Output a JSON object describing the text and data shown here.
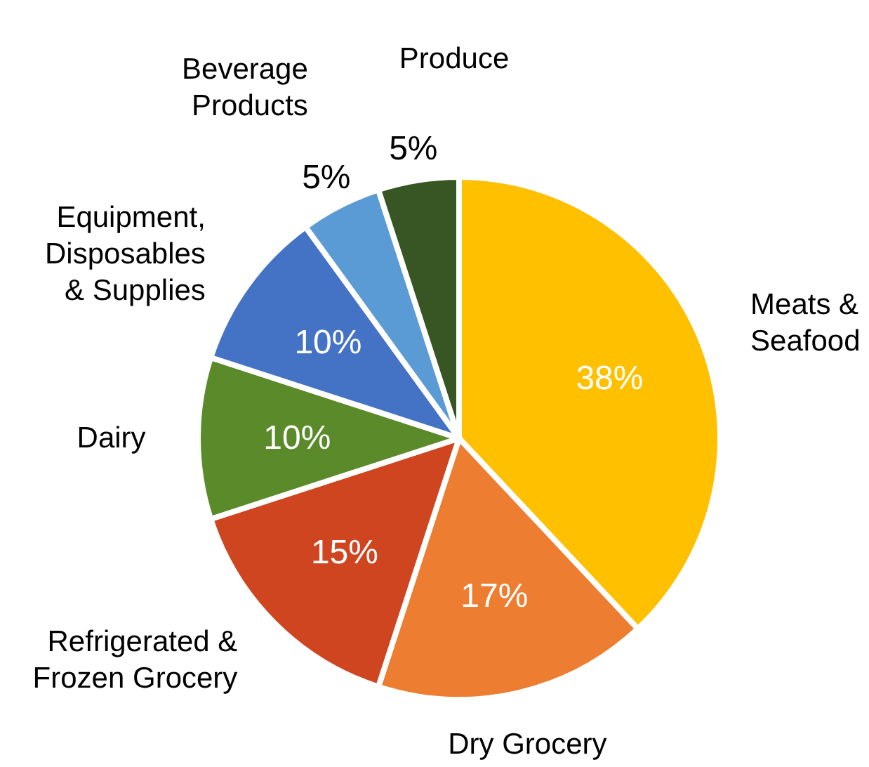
{
  "chart_data": {
    "type": "pie",
    "categories": [
      "Meats &\nSeafood",
      "Dry Grocery",
      "Refrigerated &\nFrozen Grocery",
      "Dairy",
      "Equipment,\nDisposables\n& Supplies",
      "Beverage\nProducts",
      "Produce"
    ],
    "values": [
      38,
      17,
      15,
      10,
      10,
      5,
      5
    ],
    "value_labels": [
      "38%",
      "17%",
      "15%",
      "10%",
      "10%",
      "5%",
      "5%"
    ],
    "colors": [
      "#ffc000",
      "#ed7d31",
      "#cf4520",
      "#5b8a2b",
      "#4472c4",
      "#5b9bd5",
      "#375623"
    ]
  }
}
